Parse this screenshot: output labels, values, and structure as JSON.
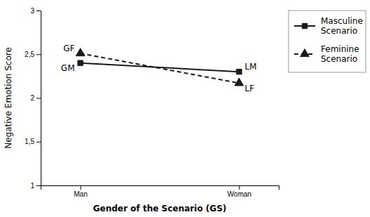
{
  "chart_data": {
    "type": "line",
    "categories": [
      "Man",
      "Woman"
    ],
    "series": [
      {
        "name": "Masculine\nScenario",
        "color": "#1a1a1a",
        "values": [
          2.4,
          2.3
        ],
        "marker": "square",
        "line_style": "solid"
      },
      {
        "name": "Feminine\nScenario",
        "color": "#1a1a1a",
        "values": [
          2.51,
          2.17
        ],
        "marker": "triangle",
        "line_style": "dashed"
      }
    ],
    "xlabel": "Gender of the Scenario (GS)",
    "ylabel": "Negative Emotion Score",
    "ylim": [
      1,
      3
    ],
    "yticks": [
      1,
      {
        "value": 1.5,
        "label": "1,5"
      },
      2,
      {
        "value": 2.5,
        "label": "2,5"
      },
      3
    ],
    "grid": false,
    "legend": "right",
    "annotations": [
      {
        "text": "GF",
        "x": "Man",
        "y": 2.51
      },
      {
        "text": "GM",
        "x": "Man",
        "y": 2.4
      },
      {
        "text": "LM",
        "x": "Woman",
        "y": 2.3
      },
      {
        "text": "LF",
        "x": "Woman",
        "y": 2.17
      }
    ]
  }
}
